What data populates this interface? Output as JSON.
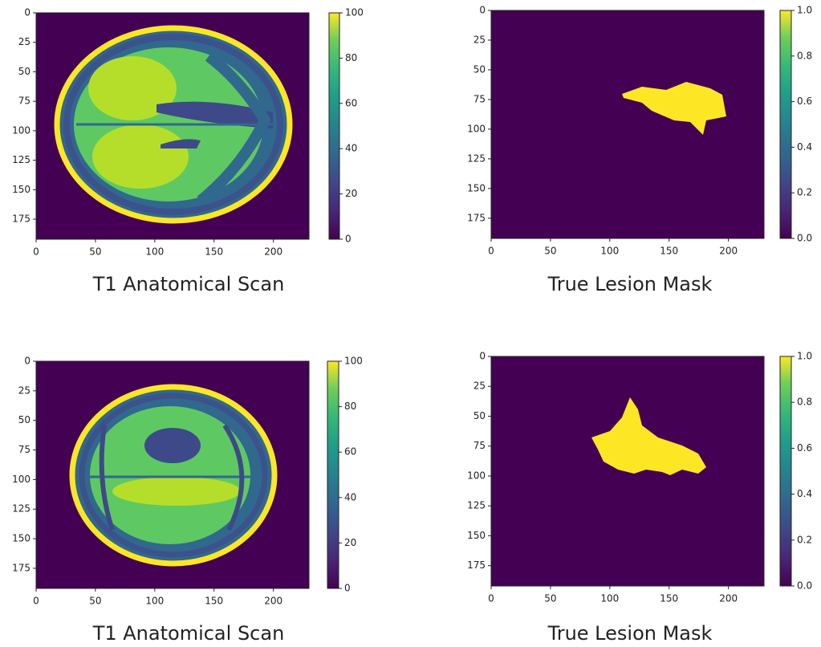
{
  "chart_data": [
    {
      "type": "image",
      "title": "T1 Anatomical Scan",
      "cmap": "viridis",
      "xlim": [
        0,
        230
      ],
      "ylim": [
        192,
        0
      ],
      "xticks": [
        0,
        50,
        100,
        150,
        200
      ],
      "yticks": [
        0,
        25,
        50,
        75,
        100,
        125,
        150,
        175
      ],
      "clim": [
        0,
        100
      ],
      "cticks": [
        0,
        20,
        40,
        60,
        80,
        100
      ]
    },
    {
      "type": "image",
      "title": "True Lesion Mask",
      "cmap": "viridis",
      "xlim": [
        0,
        230
      ],
      "ylim": [
        192,
        0
      ],
      "xticks": [
        0,
        50,
        100,
        150,
        200
      ],
      "yticks": [
        0,
        25,
        50,
        75,
        100,
        125,
        150,
        175
      ],
      "clim": [
        0,
        1
      ],
      "cticks": [
        {
          "value": 0,
          "label": "0.0"
        },
        0.2,
        0.4,
        0.6,
        0.8,
        {
          "value": 1,
          "label": "1.0"
        }
      ]
    },
    {
      "type": "image",
      "title": "T1 Anatomical Scan",
      "cmap": "viridis",
      "xlim": [
        0,
        230
      ],
      "ylim": [
        192,
        0
      ],
      "xticks": [
        0,
        50,
        100,
        150,
        200
      ],
      "yticks": [
        0,
        25,
        50,
        75,
        100,
        125,
        150,
        175
      ],
      "clim": [
        0,
        100
      ],
      "cticks": [
        0,
        20,
        40,
        60,
        80,
        100
      ]
    },
    {
      "type": "image",
      "title": "True Lesion Mask",
      "cmap": "viridis",
      "xlim": [
        0,
        230
      ],
      "ylim": [
        192,
        0
      ],
      "xticks": [
        0,
        50,
        100,
        150,
        200
      ],
      "yticks": [
        0,
        25,
        50,
        75,
        100,
        125,
        150,
        175
      ],
      "clim": [
        0,
        1
      ],
      "cticks": [
        {
          "value": 0,
          "label": "0.0"
        },
        0.2,
        0.4,
        0.6,
        0.8,
        {
          "value": 1,
          "label": "1.0"
        }
      ]
    }
  ]
}
